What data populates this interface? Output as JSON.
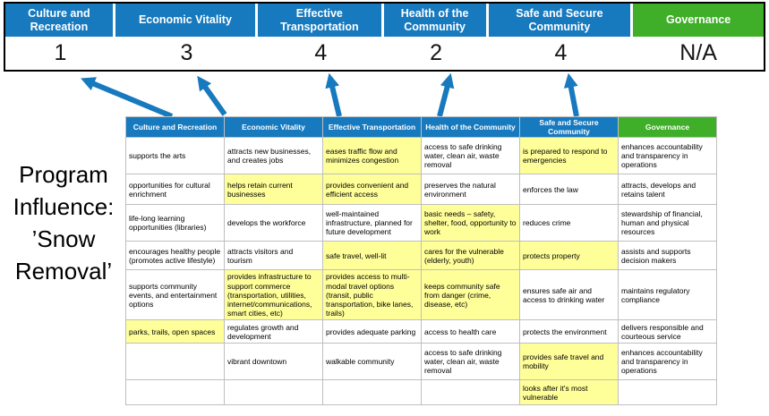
{
  "title": "Program Influence: ’Snow Removal’",
  "banner": {
    "columns": [
      {
        "label": "Culture and Recreation",
        "score": "1"
      },
      {
        "label": "Economic Vitality",
        "score": "3"
      },
      {
        "label": "Effective Transportation",
        "score": "4"
      },
      {
        "label": "Health of the Community",
        "score": "2"
      },
      {
        "label": "Safe and Secure Community",
        "score": "4"
      },
      {
        "label": "Governance",
        "score": "N/A"
      }
    ]
  },
  "colors": {
    "header_blue": "#1779BE",
    "governance_green": "#3FAE29",
    "highlight_yellow": "#FFFF99",
    "arrow_blue": "#1779BE"
  },
  "table": {
    "headers": [
      "Culture and Recreation",
      "Economic Vitality",
      "Effective Transportation",
      "Health of the Community",
      "Safe and Secure Community",
      "Governance"
    ],
    "rows": [
      [
        {
          "text": "supports the arts",
          "highlight": false
        },
        {
          "text": "attracts new businesses, and creates jobs",
          "highlight": false
        },
        {
          "text": "eases traffic flow and minimizes congestion",
          "highlight": true
        },
        {
          "text": "access to safe drinking water, clean air, waste removal",
          "highlight": false
        },
        {
          "text": "is prepared to respond to emergencies",
          "highlight": true
        },
        {
          "text": "enhances accountability and transparency in operations",
          "highlight": false
        }
      ],
      [
        {
          "text": "opportunities for cultural enrichment",
          "highlight": false
        },
        {
          "text": "helps retain current businesses",
          "highlight": true
        },
        {
          "text": "provides convenient and efficient access",
          "highlight": true
        },
        {
          "text": "preserves the natural environment",
          "highlight": false
        },
        {
          "text": "enforces the law",
          "highlight": false
        },
        {
          "text": "attracts, develops and retains talent",
          "highlight": false
        }
      ],
      [
        {
          "text": "life-long learning opportunities (libraries)",
          "highlight": false
        },
        {
          "text": "develops the workforce",
          "highlight": false
        },
        {
          "text": "well-maintained infrastructure, planned for future development",
          "highlight": false
        },
        {
          "text": "basic needs – safety, shelter, food, opportunity to work",
          "highlight": true
        },
        {
          "text": "reduces crime",
          "highlight": false
        },
        {
          "text": "stewardship of financial, human and physical resources",
          "highlight": false
        }
      ],
      [
        {
          "text": "encourages healthy people (promotes active lifestyle)",
          "highlight": false
        },
        {
          "text": "attracts visitors and tourism",
          "highlight": false
        },
        {
          "text": "safe travel, well-lit",
          "highlight": true
        },
        {
          "text": "cares for the vulnerable (elderly, youth)",
          "highlight": true
        },
        {
          "text": "protects property",
          "highlight": true
        },
        {
          "text": "assists and supports decision makers",
          "highlight": false
        }
      ],
      [
        {
          "text": "supports community events, and entertainment options",
          "highlight": false
        },
        {
          "text": "provides infrastructure to support commerce (transportation, utilities, internet/communications, smart cities, etc)",
          "highlight": true
        },
        {
          "text": "provides access to multi-modal travel options (transit, public transportation, bike lanes, trails)",
          "highlight": true
        },
        {
          "text": "keeps community safe from danger (crime, disease, etc)",
          "highlight": true
        },
        {
          "text": "ensures safe air and access to drinking water",
          "highlight": false
        },
        {
          "text": "maintains regulatory compliance",
          "highlight": false
        }
      ],
      [
        {
          "text": "parks, trails, open spaces",
          "highlight": true
        },
        {
          "text": "regulates growth and development",
          "highlight": false
        },
        {
          "text": "provides adequate parking",
          "highlight": false
        },
        {
          "text": "access to health care",
          "highlight": false
        },
        {
          "text": "protects the environment",
          "highlight": false
        },
        {
          "text": "delivers responsible and courteous service",
          "highlight": false
        }
      ],
      [
        {
          "text": "",
          "highlight": false
        },
        {
          "text": "vibrant downtown",
          "highlight": false
        },
        {
          "text": "walkable community",
          "highlight": false
        },
        {
          "text": "access to safe drinking water, clean air, waste removal",
          "highlight": false
        },
        {
          "text": "provides safe travel and mobility",
          "highlight": true
        },
        {
          "text": "enhances accountability and transparency in operations",
          "highlight": false
        }
      ],
      [
        {
          "text": "",
          "highlight": false
        },
        {
          "text": "",
          "highlight": false
        },
        {
          "text": "",
          "highlight": false
        },
        {
          "text": "",
          "highlight": false
        },
        {
          "text": "looks after it's most vulnerable",
          "highlight": true
        },
        {
          "text": "",
          "highlight": false
        }
      ]
    ]
  }
}
